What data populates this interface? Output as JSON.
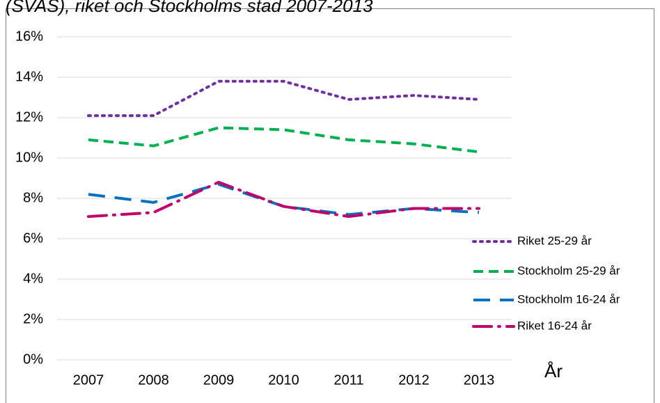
{
  "chart_data": {
    "type": "line",
    "title": "(SVAS), riket och Stockholms stad 2007-2013",
    "x_label": "År",
    "categories": [
      "2007",
      "2008",
      "2009",
      "2010",
      "2011",
      "2012",
      "2013"
    ],
    "series": [
      {
        "name": "Riket 25-29 år",
        "color": "#7030a0",
        "dash": "dotted",
        "values": [
          12.1,
          12.1,
          13.8,
          13.8,
          12.9,
          13.1,
          12.9
        ]
      },
      {
        "name": "Stockholm 25-29 år",
        "color": "#00b050",
        "dash": "dashed",
        "values": [
          10.9,
          10.6,
          11.5,
          11.4,
          10.9,
          10.7,
          10.3
        ]
      },
      {
        "name": "Stockholm 16-24 år",
        "color": "#0070c0",
        "dash": "longdash",
        "values": [
          8.2,
          7.8,
          8.7,
          7.6,
          7.2,
          7.5,
          7.3
        ]
      },
      {
        "name": "Riket 16-24 år",
        "color": "#c0006a",
        "dash": "dashdot",
        "values": [
          7.1,
          7.3,
          8.8,
          7.6,
          7.1,
          7.5,
          7.5
        ]
      }
    ],
    "ylim": [
      0,
      16
    ],
    "yticks": [
      {
        "value": 0,
        "label": "0%"
      },
      {
        "value": 2,
        "label": "2%"
      },
      {
        "value": 4,
        "label": "4%"
      },
      {
        "value": 6,
        "label": "6%"
      },
      {
        "value": 8,
        "label": "8%"
      },
      {
        "value": 10,
        "label": "10%"
      },
      {
        "value": 12,
        "label": "12%"
      },
      {
        "value": 14,
        "label": "14%"
      },
      {
        "value": 16,
        "label": "16%"
      }
    ],
    "grid": true,
    "legend": "right"
  }
}
